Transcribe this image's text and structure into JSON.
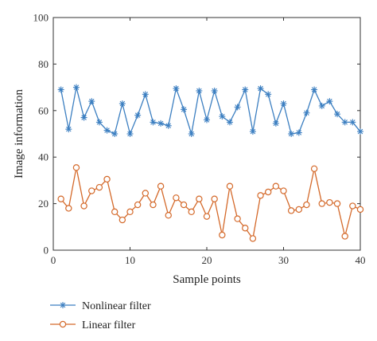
{
  "chart_data": {
    "type": "line",
    "title": "",
    "xlabel": "Sample points",
    "ylabel": "Image information",
    "xlim": [
      0,
      40
    ],
    "ylim": [
      0,
      100
    ],
    "xticks": [
      "0",
      "10",
      "20",
      "30",
      "40"
    ],
    "yticks": [
      "0",
      "20",
      "40",
      "60",
      "80",
      "100"
    ],
    "grid": false,
    "legend_position": "bottom-left, below plot",
    "x": [
      1,
      2,
      3,
      4,
      5,
      6,
      7,
      8,
      9,
      10,
      11,
      12,
      13,
      14,
      15,
      16,
      17,
      18,
      19,
      20,
      21,
      22,
      23,
      24,
      25,
      26,
      27,
      28,
      29,
      30,
      31,
      32,
      33,
      34,
      35,
      36,
      37,
      38,
      39,
      40
    ],
    "series": [
      {
        "name": "Nonlinear filter",
        "marker": "asterisk",
        "color": "#3c7fc1",
        "values": [
          69,
          52,
          70,
          57,
          64,
          55,
          51.5,
          50,
          63,
          50,
          58,
          67,
          55,
          54.5,
          53.5,
          69.5,
          60.5,
          50,
          68.5,
          56,
          68.5,
          57.5,
          55,
          61.5,
          69,
          51,
          69.5,
          67,
          54.5,
          63,
          50,
          50.5,
          59,
          69,
          62,
          64,
          58.5,
          55,
          55,
          51
        ]
      },
      {
        "name": "Linear filter",
        "marker": "circle",
        "color": "#d4692a",
        "values": [
          22,
          18,
          35.5,
          19,
          25.5,
          27,
          30.5,
          16.5,
          13,
          16.5,
          19.5,
          24.5,
          19.5,
          27.5,
          15,
          22.5,
          19.5,
          16.5,
          22,
          14.5,
          22,
          6.5,
          27.5,
          13.5,
          9.5,
          5,
          23.5,
          25,
          27.5,
          25.5,
          17,
          17.5,
          19.5,
          35,
          20,
          20.5,
          20,
          6,
          19,
          17.5
        ]
      }
    ]
  }
}
